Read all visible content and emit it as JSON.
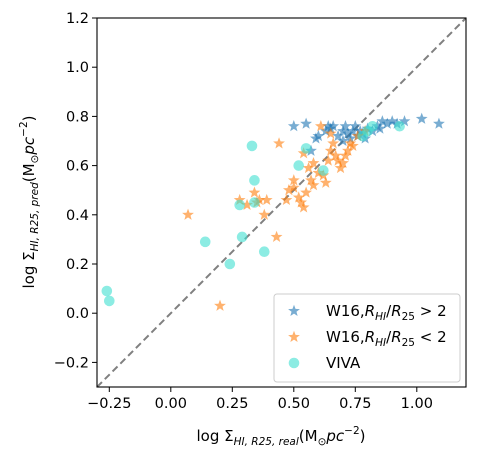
{
  "chart_data": {
    "type": "scatter",
    "xlabel_parts": [
      "log Σ",
      "HI, R25, real",
      "(M",
      "⊙",
      "pc",
      "−2",
      ")"
    ],
    "ylabel_parts": [
      "log Σ",
      "HI, R25, pred",
      "(M",
      "⊙",
      "pc",
      "−2",
      ")"
    ],
    "xlim": [
      -0.3,
      1.2
    ],
    "ylim": [
      -0.3,
      1.2
    ],
    "xticks": [
      -0.25,
      0.0,
      0.25,
      0.5,
      0.75,
      1.0
    ],
    "xtick_labels": [
      "−0.25",
      "0.00",
      "0.25",
      "0.50",
      "0.75",
      "1.00"
    ],
    "yticks": [
      -0.2,
      0.0,
      0.2,
      0.4,
      0.6,
      0.8,
      1.0,
      1.2
    ],
    "ytick_labels": [
      "−0.2",
      "0.0",
      "0.2",
      "0.4",
      "0.6",
      "0.8",
      "1.0",
      "1.2"
    ],
    "reference_line": {
      "style": "dashed",
      "color": "#808080",
      "x": [
        -0.3,
        1.2
      ],
      "y": [
        -0.3,
        1.2
      ]
    },
    "legend_position": "lower-right",
    "series": [
      {
        "name": "W16,R_HI/R_25 > 2",
        "legend_parts": [
          "W16,",
          "R",
          "HI",
          "/",
          "R",
          "25",
          " > 2"
        ],
        "marker": "star",
        "color": "#1f77b4",
        "points": [
          [
            0.5,
            0.76
          ],
          [
            0.55,
            0.77
          ],
          [
            0.59,
            0.71
          ],
          [
            0.6,
            0.72
          ],
          [
            0.63,
            0.74
          ],
          [
            0.64,
            0.76
          ],
          [
            0.65,
            0.75
          ],
          [
            0.66,
            0.76
          ],
          [
            0.68,
            0.72
          ],
          [
            0.7,
            0.74
          ],
          [
            0.71,
            0.76
          ],
          [
            0.72,
            0.73
          ],
          [
            0.73,
            0.71
          ],
          [
            0.74,
            0.74
          ],
          [
            0.75,
            0.76
          ],
          [
            0.76,
            0.72
          ],
          [
            0.77,
            0.74
          ],
          [
            0.78,
            0.73
          ],
          [
            0.8,
            0.75
          ],
          [
            0.82,
            0.74
          ],
          [
            0.84,
            0.76
          ],
          [
            0.86,
            0.78
          ],
          [
            0.88,
            0.77
          ],
          [
            0.9,
            0.78
          ],
          [
            0.92,
            0.77
          ],
          [
            0.95,
            0.78
          ],
          [
            1.02,
            0.79
          ],
          [
            1.09,
            0.77
          ],
          [
            0.57,
            0.66
          ],
          [
            0.7,
            0.7
          ],
          [
            0.79,
            0.71
          ],
          [
            0.85,
            0.75
          ]
        ]
      },
      {
        "name": "W16,R_HI/R_25 < 2",
        "legend_parts": [
          "W16,",
          "R",
          "HI",
          "/",
          "R",
          "25",
          " < 2"
        ],
        "marker": "star",
        "color": "#ff7f0e",
        "points": [
          [
            0.07,
            0.4
          ],
          [
            0.2,
            0.03
          ],
          [
            0.28,
            0.46
          ],
          [
            0.31,
            0.44
          ],
          [
            0.34,
            0.49
          ],
          [
            0.35,
            0.45
          ],
          [
            0.36,
            0.46
          ],
          [
            0.38,
            0.4
          ],
          [
            0.39,
            0.46
          ],
          [
            0.43,
            0.31
          ],
          [
            0.47,
            0.46
          ],
          [
            0.48,
            0.5
          ],
          [
            0.5,
            0.51
          ],
          [
            0.52,
            0.47
          ],
          [
            0.53,
            0.45
          ],
          [
            0.54,
            0.43
          ],
          [
            0.55,
            0.49
          ],
          [
            0.56,
            0.59
          ],
          [
            0.57,
            0.54
          ],
          [
            0.58,
            0.61
          ],
          [
            0.6,
            0.57
          ],
          [
            0.62,
            0.56
          ],
          [
            0.63,
            0.53
          ],
          [
            0.64,
            0.62
          ],
          [
            0.65,
            0.66
          ],
          [
            0.66,
            0.69
          ],
          [
            0.67,
            0.64
          ],
          [
            0.68,
            0.62
          ],
          [
            0.69,
            0.59
          ],
          [
            0.7,
            0.61
          ],
          [
            0.71,
            0.64
          ],
          [
            0.72,
            0.66
          ],
          [
            0.73,
            0.69
          ],
          [
            0.74,
            0.68
          ],
          [
            0.76,
            0.72
          ],
          [
            0.79,
            0.74
          ],
          [
            0.44,
            0.69
          ],
          [
            0.54,
            0.65
          ],
          [
            0.61,
            0.76
          ],
          [
            0.65,
            0.73
          ],
          [
            0.5,
            0.54
          ],
          [
            0.58,
            0.52
          ]
        ]
      },
      {
        "name": "VIVA",
        "marker": "circle",
        "color": "#40e0d0",
        "points": [
          [
            -0.26,
            0.09
          ],
          [
            -0.25,
            0.05
          ],
          [
            0.14,
            0.29
          ],
          [
            0.24,
            0.2
          ],
          [
            0.28,
            0.44
          ],
          [
            0.29,
            0.31
          ],
          [
            0.33,
            0.68
          ],
          [
            0.34,
            0.54
          ],
          [
            0.34,
            0.45
          ],
          [
            0.38,
            0.25
          ],
          [
            0.52,
            0.6
          ],
          [
            0.55,
            0.67
          ],
          [
            0.62,
            0.58
          ],
          [
            0.78,
            0.72
          ],
          [
            0.8,
            0.74
          ],
          [
            0.82,
            0.76
          ],
          [
            0.93,
            0.76
          ]
        ]
      }
    ]
  }
}
